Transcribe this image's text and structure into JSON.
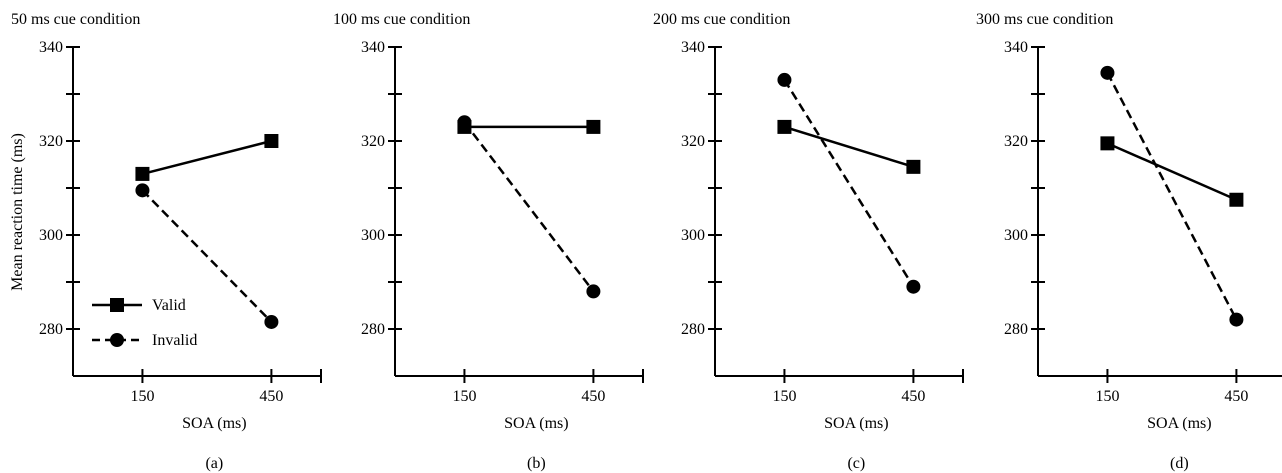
{
  "figure": {
    "shared_ylabel": "Mean reaction time (ms)",
    "legend": {
      "placement": "bottom-left of panel (a)",
      "entries": [
        {
          "name": "Valid",
          "marker": "square",
          "line": "solid"
        },
        {
          "name": "Invalid",
          "marker": "circle",
          "line": "dashed"
        }
      ]
    },
    "style": {
      "line_color": "#000000",
      "background": "#ffffff"
    }
  },
  "chart_data": [
    {
      "type": "line",
      "title": "50 ms cue condition",
      "panel_label": "(a)",
      "xlabel": "SOA (ms)",
      "ylabel": "Mean reaction time (ms)",
      "categories": [
        "150",
        "450"
      ],
      "ylim": [
        270,
        340
      ],
      "yticks": [
        280,
        300,
        320,
        340
      ],
      "series": [
        {
          "name": "Valid",
          "values": [
            313,
            320
          ]
        },
        {
          "name": "Invalid",
          "values": [
            309.5,
            281.5
          ]
        }
      ]
    },
    {
      "type": "line",
      "title": "100 ms cue condition",
      "panel_label": "(b)",
      "xlabel": "SOA (ms)",
      "categories": [
        "150",
        "450"
      ],
      "ylim": [
        270,
        340
      ],
      "yticks": [
        280,
        300,
        320,
        340
      ],
      "series": [
        {
          "name": "Valid",
          "values": [
            323,
            323
          ]
        },
        {
          "name": "Invalid",
          "values": [
            324,
            288
          ]
        }
      ]
    },
    {
      "type": "line",
      "title": "200 ms cue condition",
      "panel_label": "(c)",
      "xlabel": "SOA (ms)",
      "categories": [
        "150",
        "450"
      ],
      "ylim": [
        270,
        340
      ],
      "yticks": [
        280,
        300,
        320,
        340
      ],
      "series": [
        {
          "name": "Valid",
          "values": [
            323,
            314.5
          ]
        },
        {
          "name": "Invalid",
          "values": [
            333,
            289
          ]
        }
      ]
    },
    {
      "type": "line",
      "title": "300 ms cue condition",
      "panel_label": "(d)",
      "xlabel": "SOA (ms)",
      "categories": [
        "150",
        "450"
      ],
      "ylim": [
        270,
        340
      ],
      "yticks": [
        280,
        300,
        320,
        340
      ],
      "series": [
        {
          "name": "Valid",
          "values": [
            319.5,
            307.5
          ]
        },
        {
          "name": "Invalid",
          "values": [
            334.5,
            282
          ]
        }
      ]
    }
  ]
}
